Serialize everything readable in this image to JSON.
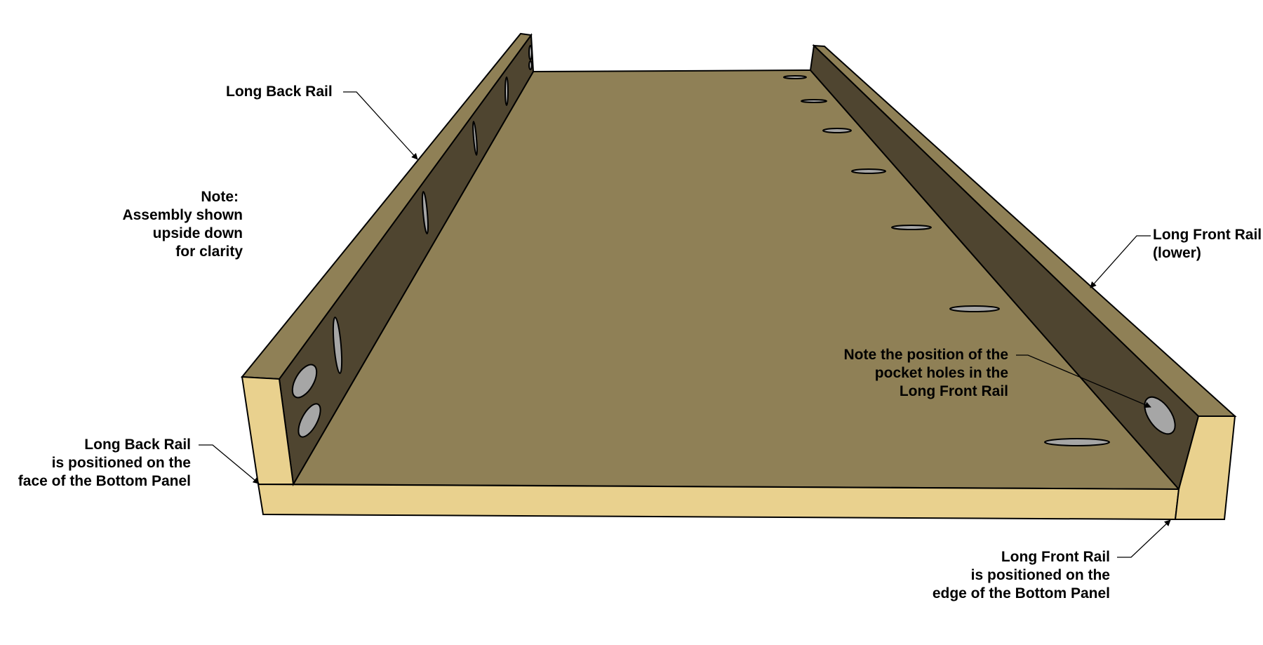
{
  "colors": {
    "edge_fill": "#E9D18E",
    "top_fill": "#8F8056",
    "rail_face": "#4F4530",
    "hole_fill": "#A6A6A6",
    "outline": "#000000"
  },
  "labels": {
    "long_back_rail": {
      "line1": "Long Back Rail"
    },
    "note": {
      "line1": "Note:",
      "line2": "Assembly shown",
      "line3": "upside down",
      "line4": "for clarity"
    },
    "long_front_rail_lower": {
      "line1": "Long Front Rail",
      "line2": "(lower)"
    },
    "pocket_holes_note": {
      "line1": "Note the position of the",
      "line2": "pocket holes in the",
      "line3": "Long Front Rail"
    },
    "back_rail_position": {
      "line1": "Long Back Rail",
      "line2": "is positioned on the",
      "line3": "face of the Bottom Panel"
    },
    "front_rail_position": {
      "line1": "Long Front Rail",
      "line2": "is positioned on the",
      "line3": "edge of the Bottom Panel"
    }
  }
}
